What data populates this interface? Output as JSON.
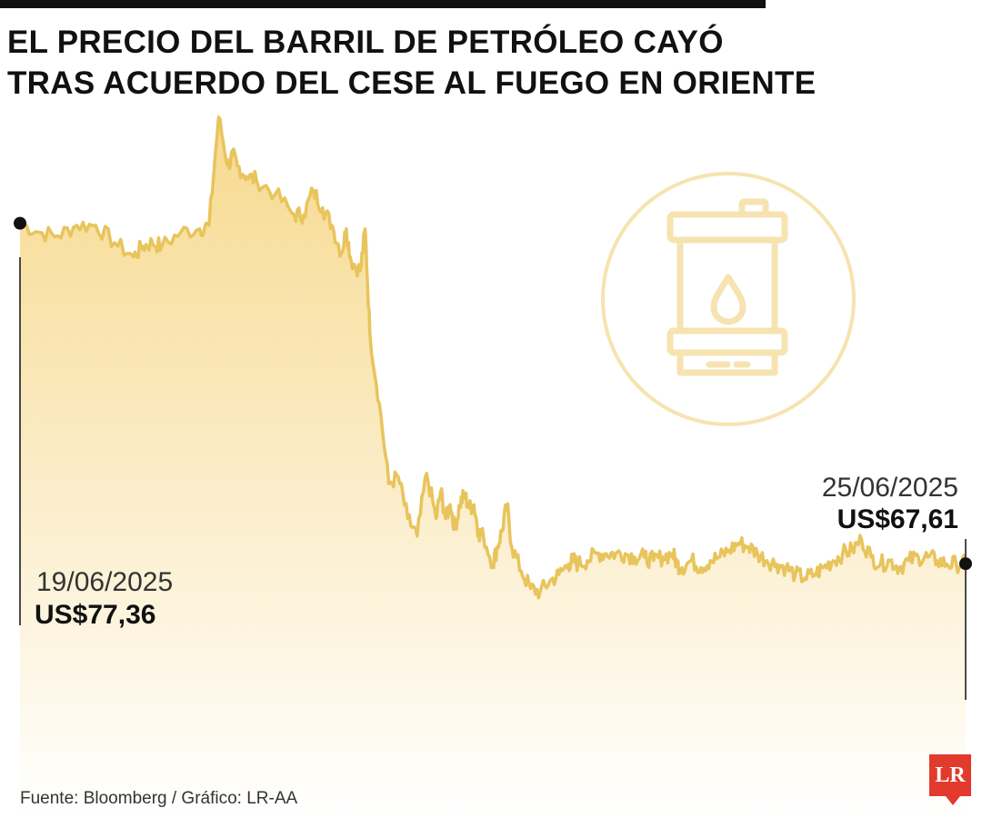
{
  "title_lines": [
    "EL PRECIO DEL BARRIL DE PETRÓLEO CAYÓ",
    "TRAS ACUERDO DEL CESE AL FUEGO EN ORIENTE"
  ],
  "start_point": {
    "date": "19/06/2025",
    "price": "US$77,36"
  },
  "end_point": {
    "date": "25/06/2025",
    "price": "US$67,61"
  },
  "source": "Fuente: Bloomberg / Gráfico: LR-AA",
  "logo": "LR",
  "icon": "oil-barrel-icon",
  "colors": {
    "line": "#e8c45c",
    "fill_top": "#f7d88a",
    "fill_bottom": "#ffffff",
    "icon": "#f6e3b0",
    "marker": "#111111",
    "logo": "#e23a2c"
  },
  "chart_data": {
    "type": "area",
    "title": "EL PRECIO DEL BARRIL DE PETRÓLEO CAYÓ TRAS ACUERDO DEL CESE AL FUEGO EN ORIENTE",
    "xlabel": "",
    "ylabel": "",
    "axes_visible": false,
    "grid": false,
    "x_range": [
      "19/06/2025",
      "25/06/2025"
    ],
    "ylim": [
      62.8,
      80.5
    ],
    "annotations": [
      {
        "x": "19/06/2025",
        "y": 77.36,
        "text": "US$77,36"
      },
      {
        "x": "25/06/2025",
        "y": 67.61,
        "text": "US$67,61"
      }
    ],
    "series": [
      {
        "x_frac": [
          0.0,
          0.02,
          0.04,
          0.06,
          0.08,
          0.1,
          0.12,
          0.13,
          0.14,
          0.15,
          0.17,
          0.19,
          0.2,
          0.21,
          0.22,
          0.225,
          0.23,
          0.24,
          0.25,
          0.27,
          0.29,
          0.3,
          0.31,
          0.32,
          0.33,
          0.34,
          0.345,
          0.35,
          0.36,
          0.365,
          0.37,
          0.38,
          0.39,
          0.4,
          0.41,
          0.42,
          0.43,
          0.44,
          0.445,
          0.45,
          0.455,
          0.46,
          0.465,
          0.47,
          0.475,
          0.48,
          0.485,
          0.49,
          0.5,
          0.505,
          0.51,
          0.515,
          0.52,
          0.53,
          0.54,
          0.55,
          0.56,
          0.57,
          0.58,
          0.585,
          0.59,
          0.6,
          0.61,
          0.62,
          0.63,
          0.64,
          0.65,
          0.66,
          0.67,
          0.68,
          0.69,
          0.695,
          0.7,
          0.71,
          0.72,
          0.73,
          0.74,
          0.75,
          0.76,
          0.77,
          0.78,
          0.79,
          0.8,
          0.81,
          0.82,
          0.83,
          0.84,
          0.85,
          0.86,
          0.87,
          0.88,
          0.89,
          0.9,
          0.91,
          0.92,
          0.93,
          0.94,
          0.95,
          0.96,
          0.97,
          0.98,
          0.99,
          1.0
        ],
        "values": [
          77.36,
          77.1,
          77.0,
          77.3,
          77.3,
          76.8,
          76.4,
          76.7,
          76.8,
          76.7,
          77.1,
          77.2,
          77.3,
          80.4,
          79.0,
          79.3,
          79.0,
          78.7,
          78.6,
          78.2,
          77.6,
          77.6,
          78.3,
          77.8,
          77.3,
          76.5,
          77.2,
          76.3,
          76.0,
          77.2,
          74.2,
          72.2,
          69.9,
          70.1,
          68.9,
          68.4,
          70.2,
          68.9,
          69.7,
          68.9,
          69.3,
          68.6,
          69.3,
          69.6,
          69.2,
          69.3,
          68.5,
          68.4,
          67.6,
          68.1,
          68.6,
          69.3,
          68.1,
          67.4,
          66.9,
          66.8,
          67.1,
          67.3,
          67.6,
          67.7,
          67.6,
          67.7,
          67.9,
          67.9,
          67.9,
          67.9,
          67.8,
          67.8,
          67.7,
          67.8,
          67.9,
          67.6,
          67.5,
          67.7,
          67.5,
          67.7,
          67.8,
          68.0,
          68.2,
          68.1,
          67.9,
          67.7,
          67.6,
          67.5,
          67.3,
          67.2,
          67.3,
          67.5,
          67.7,
          67.9,
          68.0,
          68.3,
          67.8,
          67.6,
          67.7,
          67.5,
          67.7,
          67.8,
          67.8,
          67.7,
          67.6,
          67.6,
          67.61
        ]
      }
    ]
  }
}
